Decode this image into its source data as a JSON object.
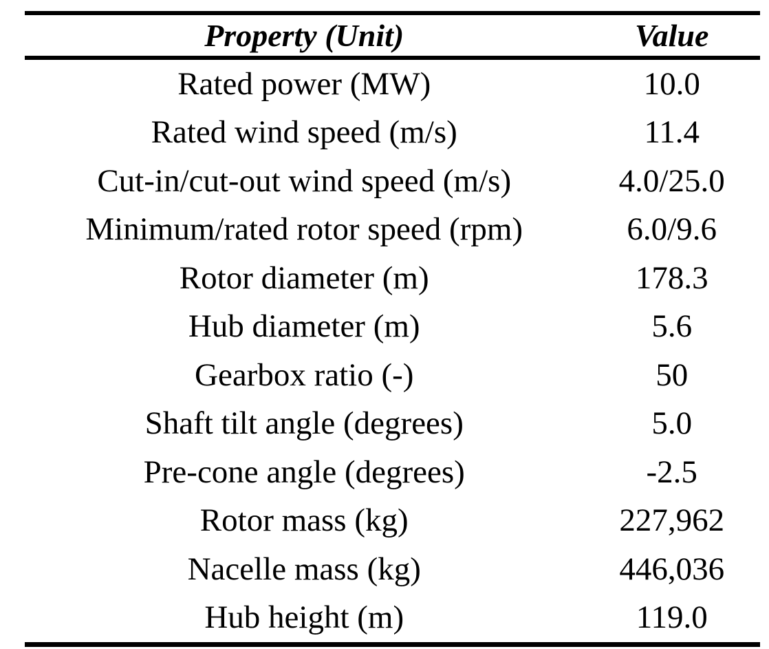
{
  "colors": {
    "background": "#ffffff",
    "text": "#000000",
    "rule": "#000000"
  },
  "table": {
    "columns": [
      "Property (Unit)",
      "Value"
    ],
    "rows": [
      {
        "property": "Rated power (MW)",
        "value": "10.0"
      },
      {
        "property": "Rated wind speed (m/s)",
        "value": "11.4"
      },
      {
        "property": "Cut-in/cut-out wind speed (m/s)",
        "value": "4.0/25.0"
      },
      {
        "property": "Minimum/rated rotor speed (rpm)",
        "value": "6.0/9.6"
      },
      {
        "property": "Rotor diameter (m)",
        "value": "178.3"
      },
      {
        "property": "Hub diameter (m)",
        "value": "5.6"
      },
      {
        "property": "Gearbox ratio (-)",
        "value": "50"
      },
      {
        "property": "Shaft tilt angle (degrees)",
        "value": "5.0"
      },
      {
        "property": "Pre-cone angle (degrees)",
        "value": "-2.5"
      },
      {
        "property": "Rotor mass (kg)",
        "value": "227,962"
      },
      {
        "property": "Nacelle mass (kg)",
        "value": "446,036"
      },
      {
        "property": "Hub height (m)",
        "value": "119.0"
      }
    ]
  }
}
